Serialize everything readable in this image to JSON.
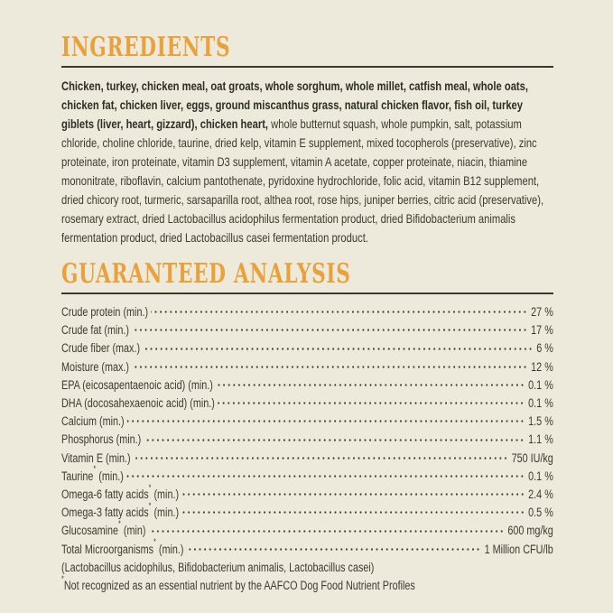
{
  "label_style": {
    "background_color": "#edeadb",
    "heading_color": "#e9a23b",
    "text_color": "#3c3a2e",
    "rule_color": "#3a382c"
  },
  "ingredients": {
    "title": "INGREDIENTS",
    "primary_bold_text": "Chicken, turkey, chicken meal, oat groats, whole sorghum, whole millet, catfish meal, whole oats, chicken fat, chicken liver, eggs, ground miscanthus grass, natural chicken flavor, fish oil, turkey giblets (liver, heart, gizzard), chicken heart,",
    "secondary_text": "whole butternut squash, whole pumpkin, salt, potassium chloride, choline chloride, taurine, dried kelp, vitamin E supplement, mixed tocopherols (preservative), zinc proteinate, iron proteinate, vitamin D3 supplement, vitamin A acetate, copper proteinate, niacin, thiamine mononitrate, riboflavin, calcium pantothenate, pyridoxine hydrochloride, folic acid, vitamin B12 supplement, dried chicory root, turmeric, sarsaparilla root, althea root, rose hips, juniper berries, citric acid (preservative), rosemary extract, dried Lactobacillus acidophilus fermentation product, dried Bifidobacterium animalis fermentation product, dried Lactobacillus casei fermentation product."
  },
  "guaranteed_analysis": {
    "title": "GUARANTEED ANALYSIS",
    "rows": [
      {
        "name": "Crude protein",
        "mark": "",
        "qualifier": "(min.)",
        "value": "27 %"
      },
      {
        "name": "Crude fat",
        "mark": "",
        "qualifier": "(min.)",
        "value": "17 %"
      },
      {
        "name": "Crude fiber",
        "mark": "",
        "qualifier": "(max.)",
        "value": "6 %"
      },
      {
        "name": "Moisture",
        "mark": "",
        "qualifier": "(max.)",
        "value": "12 %"
      },
      {
        "name": "EPA (eicosapentaenoic acid)",
        "mark": "",
        "qualifier": "(min.)",
        "value": "0.1 %"
      },
      {
        "name": "DHA (docosahexaenoic acid)",
        "mark": "",
        "qualifier": "(min.)",
        "value": "0.1 %"
      },
      {
        "name": "Calcium",
        "mark": "",
        "qualifier": "(min.)",
        "value": "1.5 %"
      },
      {
        "name": "Phosphorus",
        "mark": "",
        "qualifier": "(min.)",
        "value": "1.1 %"
      },
      {
        "name": "Vitamin E",
        "mark": "",
        "qualifier": "(min.)",
        "value": "750 IU/kg"
      },
      {
        "name": "Taurine",
        "mark": "*",
        "qualifier": "(min.)",
        "value": "0.1 %"
      },
      {
        "name": "Omega-6 fatty acids",
        "mark": "*",
        "qualifier": "(min.)",
        "value": "2.4 %"
      },
      {
        "name": "Omega-3 fatty acids",
        "mark": "*",
        "qualifier": "(min.)",
        "value": "0.5 %"
      },
      {
        "name": "Glucosamine",
        "mark": "*",
        "qualifier": "(min)",
        "value": "600 mg/kg"
      },
      {
        "name": "Total Microorganisms",
        "mark": "*",
        "qualifier": "(min.)",
        "value": "1 Million CFU/lb"
      }
    ],
    "microorganisms_detail": "(Lactobacillus acidophilus, Bifidobacterium animalis, Lactobacillus casei)",
    "footnote_mark": "*",
    "footnote": "Not recognized as an essential nutrient by the AAFCO Dog Food Nutrient Profiles"
  }
}
